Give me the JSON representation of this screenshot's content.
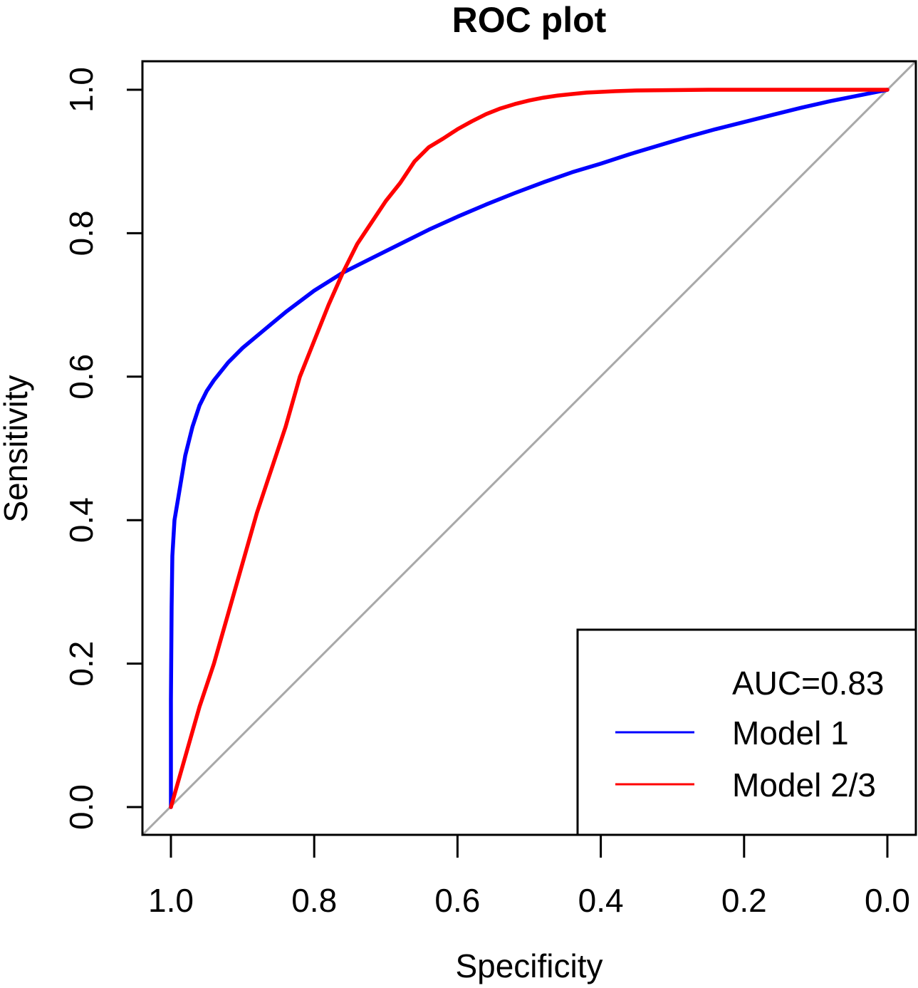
{
  "chart_data": {
    "type": "line",
    "title": "ROC plot",
    "xlabel": "Specificity",
    "ylabel": "Sensitivity",
    "x_reversed": true,
    "xlim": [
      1.0,
      0.0
    ],
    "ylim": [
      0.0,
      1.0
    ],
    "x_ticks": [
      1.0,
      0.8,
      0.6,
      0.4,
      0.2,
      0.0
    ],
    "x_tick_labels": [
      "1.0",
      "0.8",
      "0.6",
      "0.4",
      "0.2",
      "0.0"
    ],
    "y_ticks": [
      0.0,
      0.2,
      0.4,
      0.6,
      0.8,
      1.0
    ],
    "y_tick_labels": [
      "0.0",
      "0.2",
      "0.4",
      "0.6",
      "0.8",
      "1.0"
    ],
    "grid": false,
    "reference_line": {
      "color": "#a8a8a8",
      "from": [
        1.0,
        0.0
      ],
      "to": [
        0.0,
        1.0
      ]
    },
    "legend": {
      "position": "bottom-right",
      "header": "AUC=0.83",
      "entries": [
        {
          "label": "Model 1",
          "color": "#0000ff"
        },
        {
          "label": "Model 2/3",
          "color": "#ff0000"
        }
      ]
    },
    "series": [
      {
        "name": "Model 1",
        "color": "#0000ff",
        "x": [
          1.0,
          1.0,
          0.999,
          0.998,
          0.995,
          0.99,
          0.985,
          0.98,
          0.97,
          0.96,
          0.95,
          0.94,
          0.92,
          0.9,
          0.87,
          0.84,
          0.8,
          0.76,
          0.72,
          0.68,
          0.64,
          0.6,
          0.56,
          0.52,
          0.48,
          0.44,
          0.4,
          0.36,
          0.32,
          0.28,
          0.24,
          0.2,
          0.16,
          0.12,
          0.08,
          0.04,
          0.0
        ],
        "y": [
          0.0,
          0.15,
          0.28,
          0.35,
          0.4,
          0.43,
          0.46,
          0.49,
          0.53,
          0.56,
          0.58,
          0.595,
          0.62,
          0.64,
          0.665,
          0.69,
          0.72,
          0.745,
          0.765,
          0.785,
          0.805,
          0.823,
          0.84,
          0.856,
          0.871,
          0.885,
          0.897,
          0.91,
          0.922,
          0.934,
          0.945,
          0.955,
          0.965,
          0.975,
          0.984,
          0.992,
          1.0
        ]
      },
      {
        "name": "Model 2/3",
        "color": "#ff0000",
        "x": [
          1.0,
          0.98,
          0.96,
          0.94,
          0.92,
          0.9,
          0.88,
          0.86,
          0.84,
          0.82,
          0.8,
          0.78,
          0.76,
          0.74,
          0.72,
          0.7,
          0.68,
          0.66,
          0.64,
          0.62,
          0.6,
          0.58,
          0.56,
          0.54,
          0.52,
          0.5,
          0.48,
          0.46,
          0.44,
          0.42,
          0.4,
          0.38,
          0.35,
          0.3,
          0.25,
          0.2,
          0.15,
          0.1,
          0.05,
          0.0
        ],
        "y": [
          0.0,
          0.07,
          0.14,
          0.2,
          0.27,
          0.34,
          0.41,
          0.47,
          0.53,
          0.6,
          0.65,
          0.7,
          0.745,
          0.785,
          0.815,
          0.845,
          0.87,
          0.9,
          0.92,
          0.932,
          0.945,
          0.956,
          0.966,
          0.974,
          0.98,
          0.985,
          0.989,
          0.992,
          0.994,
          0.996,
          0.997,
          0.998,
          0.999,
          0.9995,
          1.0,
          1.0,
          1.0,
          1.0,
          1.0,
          1.0
        ]
      }
    ]
  }
}
